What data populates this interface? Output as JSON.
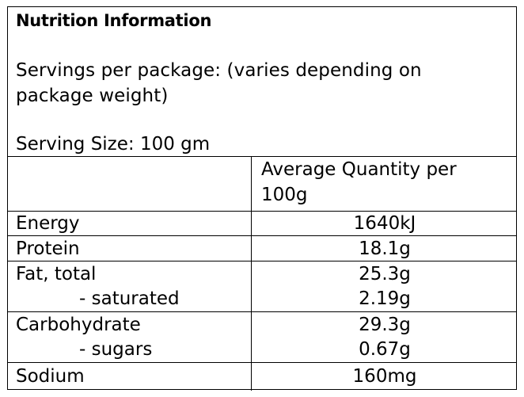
{
  "label": {
    "title": "Nutrition Information",
    "servings_per_package": "Servings per package: (varies depending on package weight)",
    "serving_size": "Serving Size: 100 gm",
    "column_header": "Average Quantity per 100g"
  },
  "rows": [
    {
      "name": "Energy",
      "value": "1640kJ"
    },
    {
      "name": "Protein",
      "value": "18.1g"
    },
    {
      "name": "Fat, total",
      "value": "25.3g"
    },
    {
      "name": "- saturated",
      "value": "2.19g"
    },
    {
      "name": "Carbohydrate",
      "value": "29.3g"
    },
    {
      "name": "- sugars",
      "value": "0.67g"
    },
    {
      "name": "Sodium",
      "value": "160mg"
    }
  ]
}
